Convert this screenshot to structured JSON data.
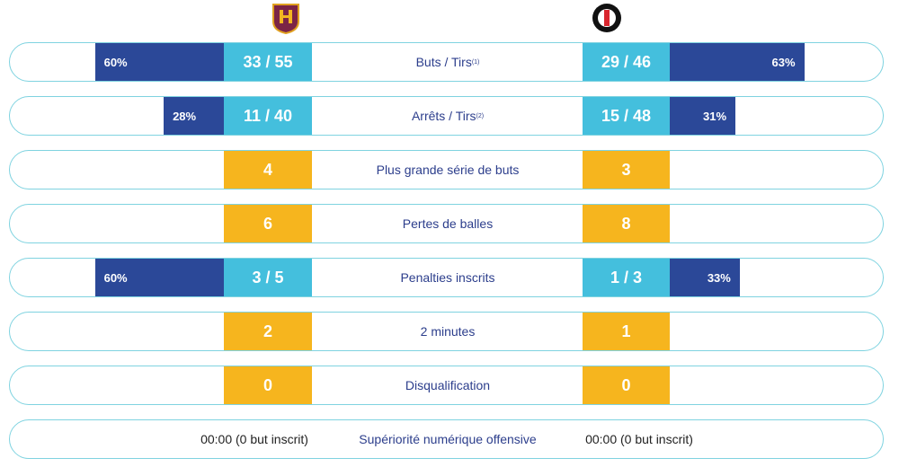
{
  "rows": [
    {
      "label": "Buts / Tirs",
      "note": "(1)",
      "home": "33 / 55",
      "away": "29 / 46",
      "box_color": "#44bfdd",
      "home_pct": 60,
      "home_pct_label": "60%",
      "away_pct": 63,
      "away_pct_label": "63%",
      "bar_color": "#2b4898"
    },
    {
      "label": "Arrêts / Tirs",
      "note": "(2)",
      "home": "11 / 40",
      "away": "15 / 48",
      "box_color": "#44bfdd",
      "home_pct": 28,
      "home_pct_label": "28%",
      "away_pct": 31,
      "away_pct_label": "31%",
      "bar_color": "#2b4898"
    },
    {
      "label": "Plus grande série de buts",
      "home": 4,
      "away": 3,
      "box_color": "#f6b51e"
    },
    {
      "label": "Pertes de balles",
      "home": 6,
      "away": 8,
      "box_color": "#f6b51e"
    },
    {
      "label": "Penalties inscrits",
      "home": "3 / 5",
      "away": "1 / 3",
      "box_color": "#44bfdd",
      "home_pct": 60,
      "home_pct_label": "60%",
      "away_pct": 33,
      "away_pct_label": "33%",
      "bar_color": "#2b4898"
    },
    {
      "label": "2 minutes",
      "home": 2,
      "away": 1,
      "box_color": "#f6b51e"
    },
    {
      "label": "Disqualification",
      "home": 0,
      "away": 0,
      "box_color": "#f6b51e"
    },
    {
      "label": "Supériorité numérique offensive",
      "home": "00:00 (0 but inscrit)",
      "away": "00:00 (0 but inscrit)"
    }
  ]
}
